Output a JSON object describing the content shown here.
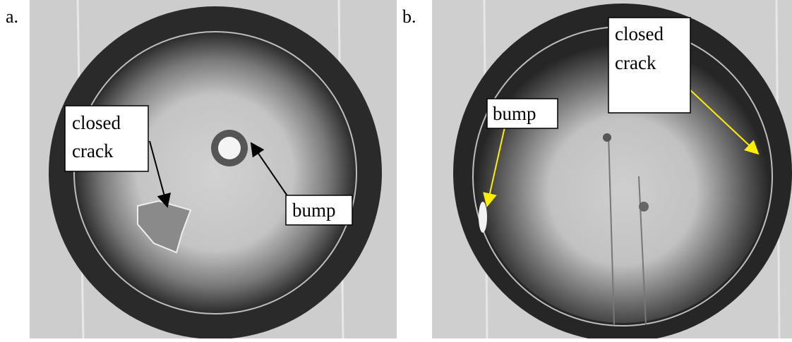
{
  "panels": [
    {
      "label": "a.",
      "annotations": [
        {
          "lines": [
            "closed",
            "crack"
          ]
        },
        {
          "lines": [
            "bump"
          ]
        }
      ]
    },
    {
      "label": "b.",
      "annotations": [
        {
          "lines": [
            "bump"
          ]
        },
        {
          "lines": [
            "closed",
            "crack"
          ]
        }
      ]
    }
  ]
}
